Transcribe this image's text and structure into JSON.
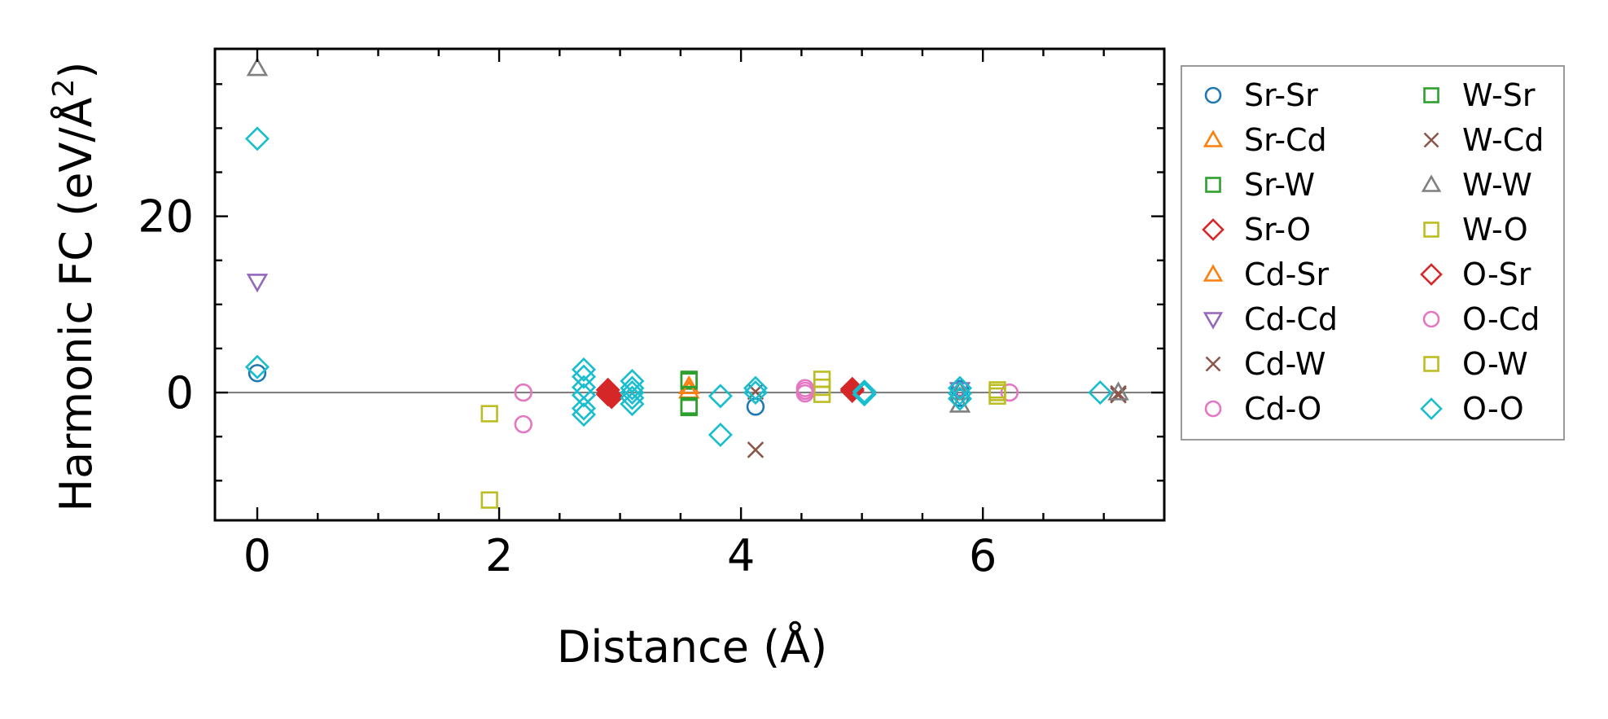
{
  "chart_data": {
    "type": "scatter",
    "title": "",
    "xlabel": "Distance (Å)",
    "ylabel_main": "Harmonic FC (eV/Å",
    "ylabel_sup": "2",
    "ylabel_close": ")",
    "xlim": [
      -0.35,
      7.5
    ],
    "ylim": [
      -14.5,
      39
    ],
    "xticks": [
      0,
      2,
      4,
      6
    ],
    "xtick_labels": [
      "0",
      "2",
      "4",
      "6"
    ],
    "yticks": [
      0,
      20
    ],
    "ytick_labels": [
      "0",
      "20"
    ],
    "zero_line": true,
    "grid": false,
    "legend_position": "outside-right",
    "series": [
      {
        "name": "Sr-Sr",
        "color": "#1f77b4",
        "marker": "circle",
        "filled": false,
        "points": [
          [
            0,
            2.2
          ],
          [
            4.12,
            -1.6
          ],
          [
            5.81,
            -0.6
          ],
          [
            5.81,
            0.4
          ]
        ]
      },
      {
        "name": "Sr-Cd",
        "color": "#ff7f0e",
        "marker": "triangle-up",
        "filled": false,
        "points": [
          [
            3.57,
            0.7
          ]
        ]
      },
      {
        "name": "Sr-W",
        "color": "#2ca02c",
        "marker": "square",
        "filled": false,
        "points": [
          [
            3.57,
            1.3
          ],
          [
            3.57,
            -1.7
          ]
        ]
      },
      {
        "name": "Sr-O",
        "color": "#d62728",
        "marker": "diamond",
        "filled": true,
        "points": [
          [
            2.9,
            0.3
          ],
          [
            2.93,
            -0.5
          ],
          [
            4.92,
            0.4
          ]
        ]
      },
      {
        "name": "Cd-Sr",
        "color": "#ff7f0e",
        "marker": "triangle-up",
        "filled": false,
        "points": [
          [
            3.57,
            0.2
          ]
        ]
      },
      {
        "name": "Cd-Cd",
        "color": "#9467bd",
        "marker": "triangle-down",
        "filled": false,
        "points": [
          [
            0,
            12.6
          ],
          [
            5.81,
            0.3
          ]
        ]
      },
      {
        "name": "Cd-W",
        "color": "#8c564b",
        "marker": "x",
        "filled": false,
        "points": [
          [
            4.12,
            -6.5
          ],
          [
            7.12,
            -0.3
          ],
          [
            4.12,
            0.1
          ]
        ]
      },
      {
        "name": "Cd-O",
        "color": "#e377c2",
        "marker": "circle",
        "filled": false,
        "points": [
          [
            2.2,
            0.0
          ],
          [
            2.2,
            -3.6
          ],
          [
            4.53,
            0.5
          ],
          [
            4.53,
            -0.1
          ],
          [
            6.22,
            0.0
          ]
        ]
      },
      {
        "name": "W-Sr",
        "color": "#2ca02c",
        "marker": "square",
        "filled": false,
        "points": [
          [
            3.57,
            1.5
          ],
          [
            3.57,
            -1.5
          ]
        ]
      },
      {
        "name": "W-Cd",
        "color": "#8c564b",
        "marker": "x",
        "filled": false,
        "points": [
          [
            7.12,
            -0.1
          ]
        ]
      },
      {
        "name": "W-W",
        "color": "#7f7f7f",
        "marker": "triangle-up",
        "filled": false,
        "points": [
          [
            0,
            36.8
          ],
          [
            5.81,
            -1.4
          ],
          [
            5.81,
            0.1
          ],
          [
            7.12,
            0.0
          ]
        ]
      },
      {
        "name": "W-O",
        "color": "#bcbd22",
        "marker": "square",
        "filled": false,
        "points": [
          [
            1.92,
            -2.4
          ],
          [
            1.92,
            -12.2
          ],
          [
            4.67,
            1.5
          ],
          [
            4.67,
            0.6
          ],
          [
            4.67,
            -0.2
          ],
          [
            6.12,
            0.3
          ],
          [
            6.12,
            -0.4
          ]
        ]
      },
      {
        "name": "O-Sr",
        "color": "#d62728",
        "marker": "diamond",
        "filled": true,
        "points": [
          [
            2.9,
            -0.2
          ],
          [
            4.92,
            0.2
          ]
        ]
      },
      {
        "name": "O-Cd",
        "color": "#e377c2",
        "marker": "circle",
        "filled": false,
        "points": [
          [
            4.53,
            0.2
          ]
        ]
      },
      {
        "name": "O-W",
        "color": "#bcbd22",
        "marker": "square",
        "filled": false,
        "points": [
          [
            6.12,
            0.0
          ]
        ]
      },
      {
        "name": "O-O",
        "color": "#17becf",
        "marker": "diamond",
        "filled": false,
        "points": [
          [
            0,
            28.8
          ],
          [
            0,
            2.9
          ],
          [
            2.7,
            2.6
          ],
          [
            2.7,
            1.8
          ],
          [
            2.7,
            0.6
          ],
          [
            2.7,
            -0.3
          ],
          [
            2.7,
            -1.8
          ],
          [
            2.7,
            -2.5
          ],
          [
            3.1,
            1.3
          ],
          [
            3.1,
            0.5
          ],
          [
            3.1,
            0.0
          ],
          [
            3.1,
            -0.6
          ],
          [
            3.1,
            -1.3
          ],
          [
            3.83,
            -0.4
          ],
          [
            3.83,
            -4.8
          ],
          [
            4.12,
            0.5
          ],
          [
            4.12,
            0.0
          ],
          [
            5.02,
            0.1
          ],
          [
            5.02,
            -0.2
          ],
          [
            5.81,
            0.5
          ],
          [
            5.81,
            -0.1
          ],
          [
            5.81,
            -0.7
          ],
          [
            6.97,
            0.0
          ]
        ]
      }
    ]
  }
}
